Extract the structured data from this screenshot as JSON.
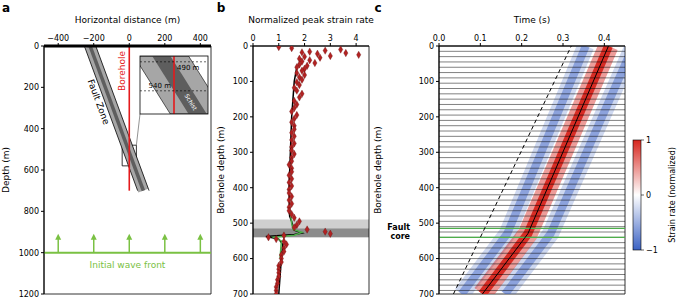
{
  "chart_data": [
    {
      "panel_label": "a",
      "type": "diagram",
      "x_label": "Horizontal distance (m)",
      "y_label": "Depth (m)",
      "xlim": [
        -480,
        460
      ],
      "xticks": [
        {
          "value": -400,
          "label": "−400"
        },
        {
          "value": -200,
          "label": "−200"
        },
        0,
        200,
        400
      ],
      "ylim": [
        0,
        1200
      ],
      "yticks": [
        0,
        200,
        400,
        600,
        800,
        1000,
        1200
      ],
      "surface_depth": 0,
      "fault_zone": {
        "label": "Fault Zone",
        "color": "#a6a6a6",
        "edges": [
          {
            "x": [
              -188.6,
              111.4
            ],
            "depth": [
              0,
              700
            ]
          },
          {
            "x": [
              -252.9,
              47.1
            ],
            "depth": [
              0,
              700
            ]
          }
        ]
      },
      "schist": {
        "label": "Schist",
        "color": "#5e5e5e",
        "edges": [
          {
            "x": [
              -210,
              90
            ],
            "depth": [
              0,
              700
            ]
          },
          {
            "x": [
              -231.4,
              68.6
            ],
            "depth": [
              0,
              700
            ]
          }
        ]
      },
      "borehole": {
        "label": "Borehole",
        "color": "#e41a1c",
        "x": [
          0,
          0
        ],
        "depth": [
          0,
          700
        ]
      },
      "zoom_box": {
        "x": [
          -40,
          40
        ],
        "depth": [
          480,
          580
        ]
      },
      "depth_marks": [
        {
          "value": 490,
          "label": "490 m"
        },
        {
          "value": 540,
          "label": "540 m"
        }
      ],
      "wave_front": {
        "label": "Initial wave front",
        "color": "#7ac143",
        "depth": 1000,
        "arrows_x": [
          -400,
          -200,
          0,
          200,
          400
        ]
      }
    },
    {
      "panel_label": "b",
      "type": "scatter",
      "x_label": "Normalized peak strain rate",
      "y_label": "Borehole depth (m)",
      "xlim": [
        0,
        4.5
      ],
      "xticks": [
        0,
        1,
        2,
        3,
        4
      ],
      "ylim": [
        0,
        700
      ],
      "yticks": [
        0,
        100,
        200,
        300,
        400,
        500,
        600,
        700
      ],
      "fault_zone": {
        "depth": [
          490,
          540
        ],
        "color": "#cfcfcf"
      },
      "fault_core": {
        "depth": [
          515,
          540
        ],
        "color": "#8c8c8c"
      },
      "series": [
        {
          "type": "scatter",
          "marker": "diamond",
          "color": "#b22222",
          "depth": [
            3,
            6,
            10,
            13,
            16,
            18,
            20,
            22,
            25,
            28,
            30,
            33,
            36,
            40,
            44,
            48,
            52,
            56,
            60,
            64,
            70,
            76,
            82,
            88,
            95,
            102,
            110,
            118,
            126,
            135,
            145,
            155,
            165,
            175,
            185,
            195,
            205,
            215,
            225,
            235,
            245,
            255,
            265,
            275,
            285,
            295,
            305,
            315,
            325,
            335,
            345,
            355,
            365,
            375,
            385,
            395,
            405,
            415,
            425,
            435,
            445,
            455,
            465,
            475,
            485,
            495,
            505,
            512,
            518,
            524,
            530,
            535,
            540,
            545,
            552,
            560,
            570,
            580,
            590,
            600,
            610,
            620,
            630,
            640,
            650,
            660,
            670,
            680,
            690,
            700
          ],
          "x": [
            1.0,
            1.5,
            3.4,
            2.8,
            2.2,
            1.9,
            3.6,
            2.5,
            4.1,
            3.0,
            2.0,
            2.6,
            1.8,
            2.2,
            1.9,
            2.4,
            1.8,
            2.1,
            1.7,
            2.0,
            1.9,
            1.7,
            2.0,
            1.8,
            1.9,
            1.7,
            1.8,
            1.6,
            1.7,
            1.9,
            1.8,
            1.6,
            1.7,
            1.6,
            1.5,
            1.7,
            1.6,
            1.5,
            1.6,
            1.6,
            1.5,
            1.6,
            1.5,
            1.6,
            1.5,
            1.5,
            1.6,
            1.5,
            1.5,
            1.4,
            1.5,
            1.5,
            1.4,
            1.5,
            1.4,
            1.5,
            1.4,
            1.4,
            1.5,
            1.4,
            1.5,
            1.4,
            1.4,
            1.5,
            1.6,
            1.8,
            1.7,
            1.6,
            2.1,
            2.8,
            3.0,
            1.2,
            0.6,
            0.9,
            1.2,
            1.3,
            1.2,
            1.2,
            1.1,
            1.1,
            1.1,
            1.0,
            1.0,
            1.0,
            1.0,
            0.95,
            0.95,
            0.9,
            0.9,
            0.9
          ]
        },
        {
          "type": "line",
          "color": "#000000",
          "depth": [
            60,
            100,
            200,
            300,
            400,
            480,
            495,
            510,
            520,
            528,
            532,
            538,
            545,
            560,
            600,
            700
          ],
          "x": [
            1.7,
            1.6,
            1.5,
            1.45,
            1.4,
            1.42,
            1.5,
            1.55,
            1.6,
            1.9,
            1.6,
            0.5,
            1.0,
            1.15,
            1.1,
            1.0
          ]
        },
        {
          "type": "line",
          "color": "#4daf4a",
          "depth": [
            470,
            500,
            518,
            526,
            534,
            540,
            550,
            600
          ],
          "x": [
            1.45,
            1.5,
            1.55,
            1.9,
            1.6,
            0.8,
            1.1,
            1.05
          ]
        }
      ]
    },
    {
      "panel_label": "c",
      "type": "heatmap",
      "x_label": "Time (s)",
      "y_label": "Borehole depth (m)",
      "xlim": [
        0,
        0.45
      ],
      "xticks": [
        {
          "value": 0,
          "label": "0.0"
        },
        {
          "value": 0.1,
          "label": "0.1"
        },
        {
          "value": 0.2,
          "label": "0.2"
        },
        {
          "value": 0.3,
          "label": "0.3"
        },
        {
          "value": 0.4,
          "label": "0.4"
        }
      ],
      "ylim": [
        0,
        700
      ],
      "yticks": [
        0,
        100,
        200,
        300,
        400,
        500,
        600,
        700
      ],
      "bands": [
        {
          "value": -1,
          "color": "#3b62c4",
          "time": [
            0.055,
            0.165,
            0.355
          ],
          "depth": [
            700,
            530,
            0
          ]
        },
        {
          "value": -1,
          "color": "#3b62c4",
          "time": [
            0.16,
            0.27,
            0.47
          ],
          "depth": [
            700,
            530,
            0
          ]
        },
        {
          "value": 1,
          "color": "#d7261e",
          "time": [
            0.105,
            0.215,
            0.41
          ],
          "depth": [
            700,
            530,
            0
          ]
        }
      ],
      "trace_depths": [
        15,
        30,
        45,
        60,
        75,
        90,
        105,
        120,
        135,
        150,
        165,
        180,
        195,
        210,
        225,
        240,
        255,
        270,
        285,
        300,
        315,
        330,
        345,
        360,
        375,
        390,
        405,
        420,
        435,
        450,
        465,
        480,
        495,
        510,
        525,
        540,
        555,
        570,
        585,
        600,
        615,
        630,
        645,
        660,
        675,
        690
      ],
      "lines": [
        {
          "line_style": "solid",
          "color": "#000000",
          "time": [
            0.105,
            0.215,
            0.41
          ],
          "depth": [
            700,
            530,
            0
          ]
        },
        {
          "line_style": "dashed",
          "color": "#000000",
          "time": [
            0.035,
            0.32
          ],
          "depth": [
            700,
            0
          ]
        }
      ],
      "fault_core": {
        "label": "Fault core",
        "color": "#4daf4a",
        "depth": [
          515,
          540
        ]
      },
      "colorbar": {
        "label": "Strain rate (normalized)",
        "range": [
          -1,
          1
        ],
        "ticks": [
          {
            "value": -1,
            "label": "−1"
          },
          0,
          1
        ]
      }
    }
  ]
}
